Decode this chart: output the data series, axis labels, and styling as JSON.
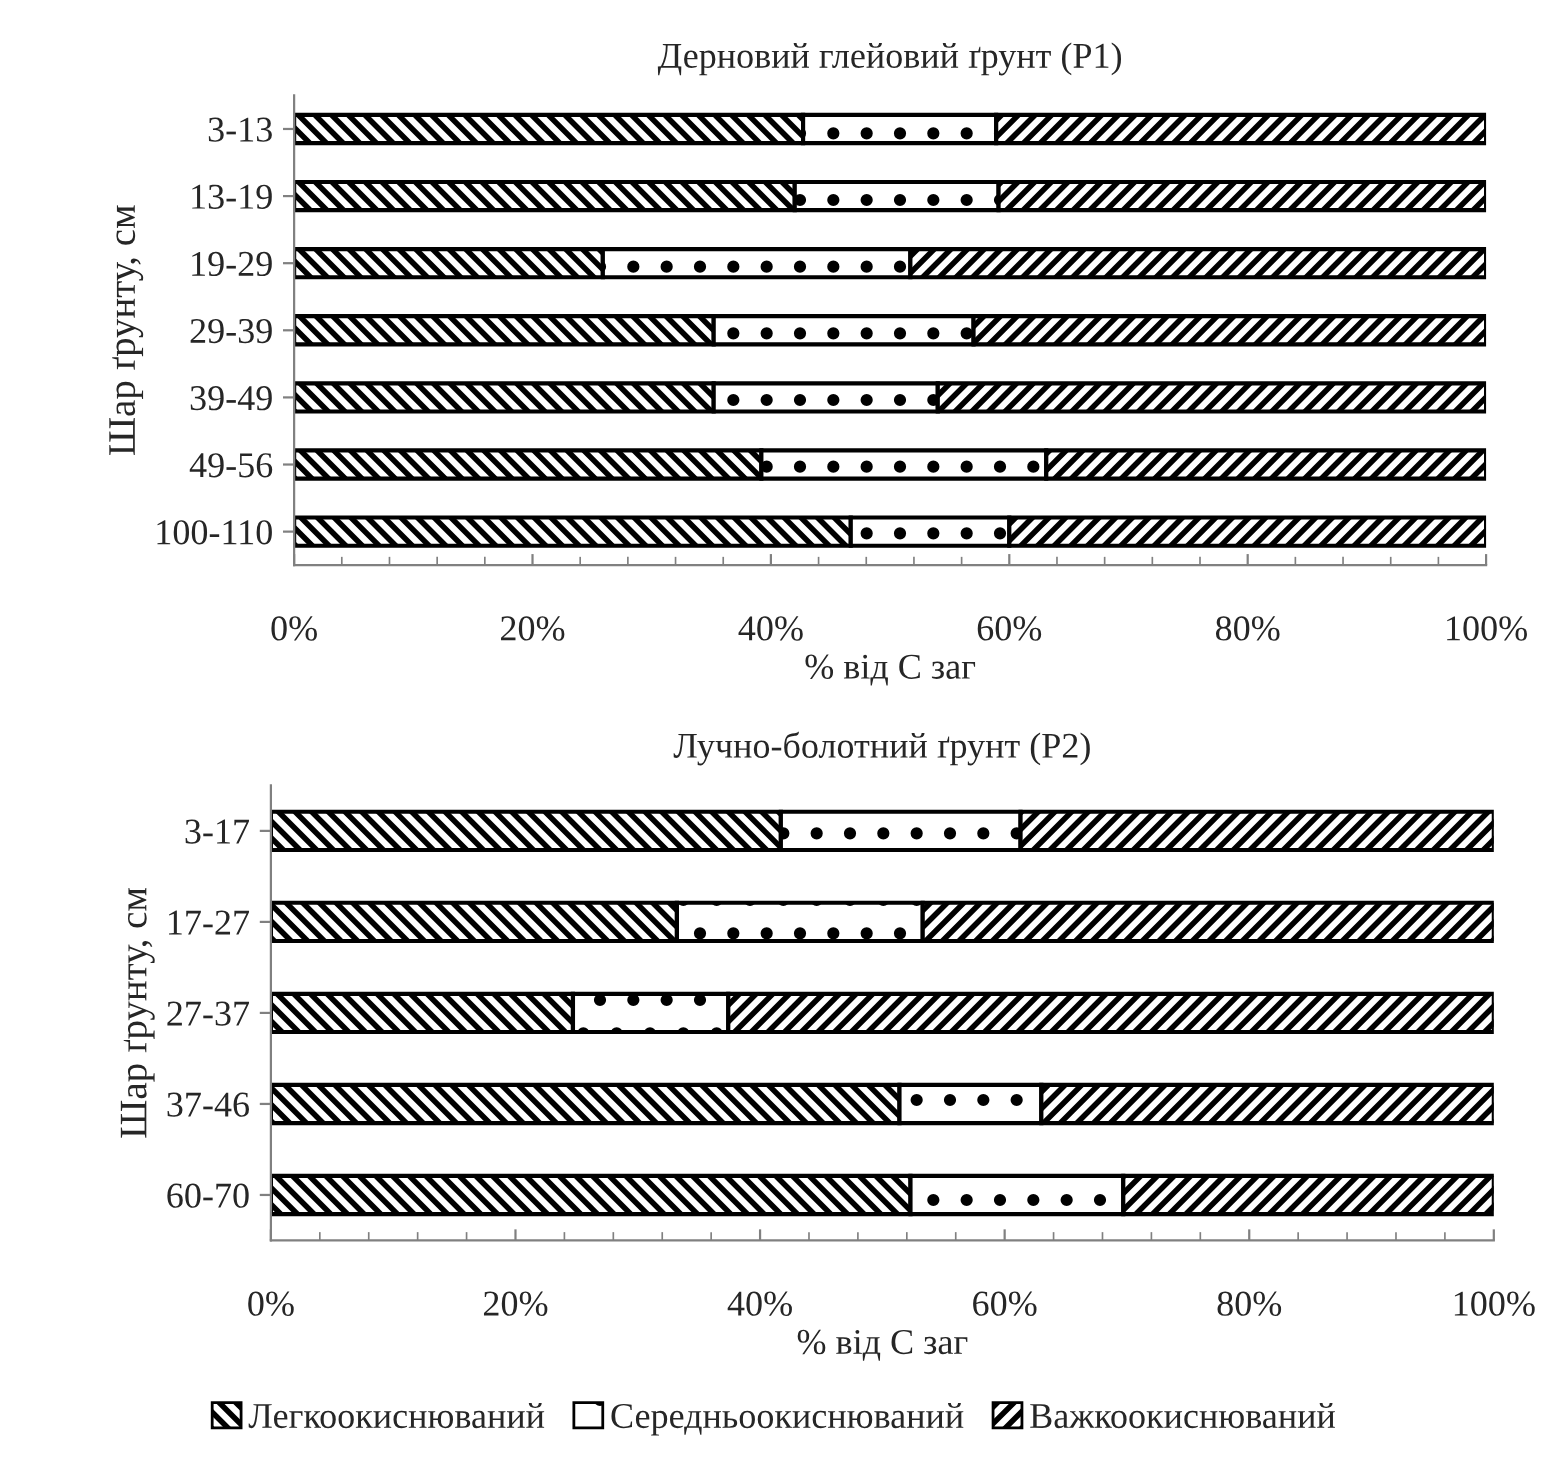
{
  "chart_data": [
    {
      "type": "bar",
      "orientation": "horizontal",
      "stacked": true,
      "title": "Дерновий глейовий ґрунт (Р1)",
      "xlabel": "% від С заг",
      "ylabel": "Шар ґрунту, см",
      "categories": [
        "3-13",
        "13-19",
        "19-29",
        "29-39",
        "39-49",
        "49-56",
        "100-110"
      ],
      "series": [
        {
          "name": "Легкоокиснюваний",
          "color": "#000000",
          "values": [
            42.7,
            42.0,
            25.9,
            35.2,
            35.2,
            39.2,
            46.7
          ]
        },
        {
          "name": "Середньоокиснюваний",
          "color": "#000000",
          "values": [
            16.2,
            17.1,
            25.8,
            21.8,
            18.8,
            23.9,
            13.3
          ]
        },
        {
          "name": "Важкоокиснюваний",
          "color": "#000000",
          "values": [
            41.1,
            40.9,
            48.3,
            43.0,
            46.0,
            36.9,
            40.0
          ]
        }
      ],
      "xlim": [
        0,
        100
      ],
      "xticks": [
        {
          "value": 0,
          "label": "0%"
        },
        {
          "value": 20,
          "label": "20%"
        },
        {
          "value": 40,
          "label": "40%"
        },
        {
          "value": 60,
          "label": "60%"
        },
        {
          "value": 80,
          "label": "80%"
        },
        {
          "value": 100,
          "label": "100%"
        }
      ],
      "grid": false,
      "legend": "bottom"
    },
    {
      "type": "bar",
      "orientation": "horizontal",
      "stacked": true,
      "title": "Лучно-болотний ґрунт (Р2)",
      "xlabel": "% від С заг",
      "ylabel": "Шар ґрунту, см",
      "categories": [
        "3-17",
        "17-27",
        "27-37",
        "37-46",
        "60-70"
      ],
      "series": [
        {
          "name": "Легкоокиснюваний",
          "color": "#000000",
          "values": [
            41.7,
            33.2,
            24.7,
            51.4,
            52.3
          ]
        },
        {
          "name": "Середньоокиснюваний",
          "color": "#000000",
          "values": [
            19.6,
            20.1,
            12.7,
            11.6,
            17.4
          ]
        },
        {
          "name": "Важкоокиснюваний",
          "color": "#000000",
          "values": [
            38.7,
            46.7,
            62.6,
            37.0,
            30.3
          ]
        }
      ],
      "xlim": [
        0,
        100
      ],
      "xticks": [
        {
          "value": 0,
          "label": "0%"
        },
        {
          "value": 20,
          "label": "20%"
        },
        {
          "value": 40,
          "label": "40%"
        },
        {
          "value": 60,
          "label": "60%"
        },
        {
          "value": 80,
          "label": "80%"
        },
        {
          "value": 100,
          "label": "100%"
        }
      ],
      "grid": false,
      "legend": "bottom"
    }
  ]
}
